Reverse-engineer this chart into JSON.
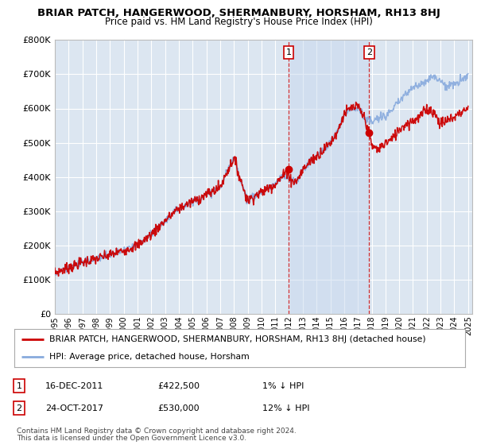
{
  "title": "BRIAR PATCH, HANGERWOOD, SHERMANBURY, HORSHAM, RH13 8HJ",
  "subtitle": "Price paid vs. HM Land Registry's House Price Index (HPI)",
  "legend_line1": "BRIAR PATCH, HANGERWOOD, SHERMANBURY, HORSHAM, RH13 8HJ (detached house)",
  "legend_line2": "HPI: Average price, detached house, Horsham",
  "footer1": "Contains HM Land Registry data © Crown copyright and database right 2024.",
  "footer2": "This data is licensed under the Open Government Licence v3.0.",
  "annotation1_label": "1",
  "annotation1_date": "16-DEC-2011",
  "annotation1_price": "£422,500",
  "annotation1_hpi": "1% ↓ HPI",
  "annotation2_label": "2",
  "annotation2_date": "24-OCT-2017",
  "annotation2_price": "£530,000",
  "annotation2_hpi": "12% ↓ HPI",
  "background_color": "#dce6f1",
  "red_line_color": "#cc0000",
  "blue_line_color": "#88aadd",
  "ylim": [
    0,
    800000
  ],
  "yticks": [
    0,
    100000,
    200000,
    300000,
    400000,
    500000,
    600000,
    700000,
    800000
  ],
  "ytick_labels": [
    "£0",
    "£100K",
    "£200K",
    "£300K",
    "£400K",
    "£500K",
    "£600K",
    "£700K",
    "£800K"
  ],
  "sale1_year": 2011.96,
  "sale1_price": 422500,
  "sale2_year": 2017.81,
  "sale2_price": 530000,
  "marker_color": "#cc0000",
  "shade_color": "#dce6f1",
  "grid_color": "white"
}
